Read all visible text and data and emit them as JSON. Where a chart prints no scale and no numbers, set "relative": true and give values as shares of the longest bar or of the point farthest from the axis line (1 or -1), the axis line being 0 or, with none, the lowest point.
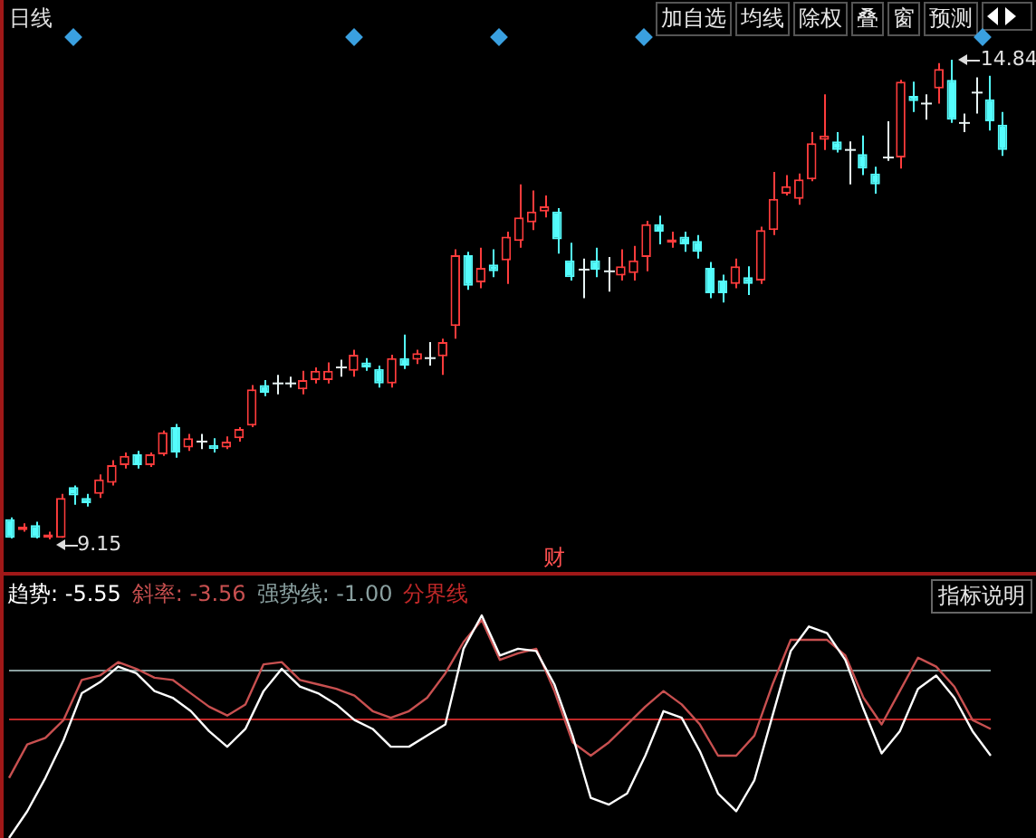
{
  "chart_data": [
    {
      "type": "candlestick",
      "title": "日线",
      "tick_labels": false,
      "categories": [
        null,
        null,
        null,
        null,
        null,
        null,
        null,
        null,
        null,
        null,
        null,
        null,
        null,
        null,
        null,
        null,
        null,
        null,
        null,
        null,
        null,
        null,
        null,
        null,
        null,
        null,
        null,
        null,
        null,
        null,
        null,
        null,
        null,
        null,
        null,
        null,
        null,
        null,
        null,
        null,
        null,
        null,
        null,
        null,
        null,
        null,
        null,
        null,
        null,
        null,
        null,
        null,
        null,
        null,
        null,
        null,
        null,
        null,
        null,
        null,
        null,
        null,
        null,
        null,
        null,
        null,
        null,
        null,
        null,
        null,
        null,
        null,
        null,
        null,
        null,
        null,
        null,
        null,
        null
      ],
      "ohlc": [
        [
          9.39,
          9.41,
          9.16,
          9.17
        ],
        [
          9.26,
          9.34,
          9.24,
          9.3
        ],
        [
          9.32,
          9.36,
          9.16,
          9.17
        ],
        [
          9.17,
          9.24,
          9.15,
          9.21
        ],
        [
          9.17,
          9.69,
          9.17,
          9.64
        ],
        [
          9.77,
          9.79,
          9.56,
          9.67
        ],
        [
          9.64,
          9.69,
          9.54,
          9.58
        ],
        [
          9.69,
          9.92,
          9.64,
          9.86
        ],
        [
          9.82,
          10.09,
          9.79,
          10.03
        ],
        [
          10.03,
          10.18,
          9.99,
          10.14
        ],
        [
          10.16,
          10.2,
          9.99,
          10.03
        ],
        [
          10.03,
          10.18,
          10.01,
          10.16
        ],
        [
          10.16,
          10.44,
          10.14,
          10.42
        ],
        [
          10.48,
          10.52,
          10.12,
          10.18
        ],
        [
          10.24,
          10.4,
          10.2,
          10.35
        ],
        [
          10.31,
          10.4,
          10.22,
          10.31
        ],
        [
          10.27,
          10.35,
          10.18,
          10.22
        ],
        [
          10.24,
          10.37,
          10.22,
          10.31
        ],
        [
          10.35,
          10.48,
          10.31,
          10.46
        ],
        [
          10.5,
          10.98,
          10.48,
          10.93
        ],
        [
          10.98,
          11.04,
          10.85,
          10.89
        ],
        [
          11.0,
          11.1,
          10.87,
          11.0
        ],
        [
          11.0,
          11.08,
          10.95,
          11.0
        ],
        [
          10.93,
          11.15,
          10.87,
          11.04
        ],
        [
          11.04,
          11.19,
          11.0,
          11.15
        ],
        [
          11.04,
          11.25,
          11.0,
          11.15
        ],
        [
          11.19,
          11.28,
          11.08,
          11.19
        ],
        [
          11.15,
          11.4,
          11.08,
          11.34
        ],
        [
          11.25,
          11.3,
          11.15,
          11.19
        ],
        [
          11.17,
          11.21,
          10.95,
          11.0
        ],
        [
          11.0,
          11.34,
          10.95,
          11.3
        ],
        [
          11.3,
          11.58,
          11.17,
          11.21
        ],
        [
          11.28,
          11.4,
          11.23,
          11.36
        ],
        [
          11.3,
          11.49,
          11.21,
          11.3
        ],
        [
          11.32,
          11.53,
          11.1,
          11.49
        ],
        [
          11.68,
          12.59,
          11.53,
          12.52
        ],
        [
          12.52,
          12.56,
          12.11,
          12.16
        ],
        [
          12.2,
          12.61,
          12.13,
          12.37
        ],
        [
          12.41,
          12.59,
          12.26,
          12.33
        ],
        [
          12.46,
          12.8,
          12.18,
          12.74
        ],
        [
          12.69,
          13.36,
          12.61,
          12.97
        ],
        [
          12.91,
          13.29,
          12.82,
          13.04
        ],
        [
          13.04,
          13.23,
          12.97,
          13.1
        ],
        [
          13.04,
          13.08,
          12.54,
          12.71
        ],
        [
          12.46,
          12.67,
          12.22,
          12.26
        ],
        [
          12.35,
          12.48,
          12.01,
          12.35
        ],
        [
          12.46,
          12.61,
          12.26,
          12.35
        ],
        [
          12.33,
          12.5,
          12.09,
          12.33
        ],
        [
          12.28,
          12.59,
          12.22,
          12.39
        ],
        [
          12.31,
          12.63,
          12.22,
          12.46
        ],
        [
          12.5,
          12.93,
          12.33,
          12.89
        ],
        [
          12.89,
          12.99,
          12.65,
          12.8
        ],
        [
          12.67,
          12.8,
          12.61,
          12.71
        ],
        [
          12.74,
          12.8,
          12.56,
          12.65
        ],
        [
          12.69,
          12.76,
          12.48,
          12.56
        ],
        [
          12.37,
          12.44,
          12.01,
          12.07
        ],
        [
          12.22,
          12.29,
          11.96,
          12.07
        ],
        [
          12.18,
          12.48,
          12.13,
          12.39
        ],
        [
          12.26,
          12.39,
          12.05,
          12.18
        ],
        [
          12.22,
          12.86,
          12.18,
          12.82
        ],
        [
          12.82,
          13.51,
          12.76,
          13.19
        ],
        [
          13.25,
          13.47,
          13.23,
          13.34
        ],
        [
          13.19,
          13.49,
          13.12,
          13.42
        ],
        [
          13.42,
          13.98,
          13.4,
          13.85
        ],
        [
          13.89,
          14.43,
          13.77,
          13.94
        ],
        [
          13.87,
          13.98,
          13.74,
          13.77
        ],
        [
          13.77,
          13.87,
          13.36,
          13.77
        ],
        [
          13.72,
          13.94,
          13.47,
          13.55
        ],
        [
          13.49,
          13.57,
          13.25,
          13.36
        ],
        [
          13.68,
          14.11,
          13.64,
          13.68
        ],
        [
          13.68,
          14.6,
          13.55,
          14.58
        ],
        [
          14.41,
          14.58,
          14.22,
          14.35
        ],
        [
          14.32,
          14.43,
          14.13,
          14.32
        ],
        [
          14.5,
          14.8,
          14.32,
          14.73
        ],
        [
          14.6,
          14.84,
          14.09,
          14.13
        ],
        [
          14.09,
          14.2,
          13.98,
          14.09
        ],
        [
          14.45,
          14.63,
          14.2,
          14.45
        ],
        [
          14.37,
          14.65,
          14.0,
          14.11
        ],
        [
          14.07,
          14.22,
          13.7,
          13.77
        ]
      ],
      "colors": [
        "#54fcfc",
        "#ff3c3c",
        "#54fcfc",
        "#ff3c3c",
        "#ff3c3c",
        "#54fcfc",
        "#54fcfc",
        "#ff3c3c",
        "#ff3c3c",
        "#ff3c3c",
        "#54fcfc",
        "#ff3c3c",
        "#ff3c3c",
        "#54fcfc",
        "#ff3c3c",
        "#e8f4f4",
        "#54fcfc",
        "#ff3c3c",
        "#ff3c3c",
        "#ff3c3c",
        "#54fcfc",
        "#e8f4f4",
        "#e8f4f4",
        "#ff3c3c",
        "#ff3c3c",
        "#ff3c3c",
        "#e8f4f4",
        "#ff3c3c",
        "#54fcfc",
        "#54fcfc",
        "#ff3c3c",
        "#54fcfc",
        "#ff3c3c",
        "#e8f4f4",
        "#ff3c3c",
        "#ff3c3c",
        "#54fcfc",
        "#ff3c3c",
        "#54fcfc",
        "#ff3c3c",
        "#ff3c3c",
        "#ff3c3c",
        "#ff3c3c",
        "#54fcfc",
        "#54fcfc",
        "#e8f4f4",
        "#54fcfc",
        "#e8f4f4",
        "#ff3c3c",
        "#ff3c3c",
        "#ff3c3c",
        "#54fcfc",
        "#ff3c3c",
        "#54fcfc",
        "#54fcfc",
        "#54fcfc",
        "#54fcfc",
        "#ff3c3c",
        "#54fcfc",
        "#ff3c3c",
        "#ff3c3c",
        "#ff3c3c",
        "#ff3c3c",
        "#ff3c3c",
        "#ff3c3c",
        "#54fcfc",
        "#e8f4f4",
        "#54fcfc",
        "#54fcfc",
        "#e8f4f4",
        "#ff3c3c",
        "#54fcfc",
        "#e8f4f4",
        "#ff3c3c",
        "#54fcfc",
        "#e8f4f4",
        "#e8f4f4",
        "#54fcfc",
        "#54fcfc"
      ],
      "annotations": [
        "加自选",
        "均线",
        "除权",
        "叠",
        "窗",
        "预测",
        "财",
        "14.84",
        "9.15"
      ]
    },
    {
      "type": "line",
      "relative": true,
      "marker": "none",
      "categories": [
        null,
        null,
        null,
        null,
        null,
        null,
        null,
        null,
        null,
        null,
        null,
        null,
        null,
        null,
        null,
        null,
        null,
        null,
        null,
        null,
        null,
        null,
        null,
        null,
        null,
        null,
        null,
        null,
        null,
        null,
        null,
        null,
        null,
        null,
        null,
        null,
        null,
        null,
        null,
        null,
        null,
        null,
        null,
        null,
        null,
        null,
        null,
        null,
        null,
        null,
        null,
        null,
        null,
        null,
        null
      ],
      "series": [
        {
          "color": "#ffffff",
          "values": [
            0,
            0.12,
            0.27,
            0.44,
            0.65,
            0.7,
            0.77,
            0.74,
            0.66,
            0.63,
            0.57,
            0.48,
            0.41,
            0.49,
            0.66,
            0.76,
            0.68,
            0.65,
            0.6,
            0.53,
            0.49,
            0.41,
            0.41,
            0.46,
            0.51,
            0.85,
            1,
            0.82,
            0.85,
            0.84,
            0.69,
            0.46,
            0.18,
            0.15,
            0.2,
            0.37,
            0.57,
            0.54,
            0.39,
            0.2,
            0.12,
            0.26,
            0.55,
            0.84,
            0.95,
            0.92,
            0.8,
            0.58,
            0.38,
            0.48,
            0.67,
            0.73,
            0.63,
            0.48,
            0.37
          ]
        },
        {
          "color": "#c85050",
          "values": [
            0.27,
            0.42,
            0.45,
            0.53,
            0.71,
            0.73,
            0.79,
            0.76,
            0.72,
            0.71,
            0.65,
            0.59,
            0.55,
            0.6,
            0.78,
            0.79,
            0.71,
            0.69,
            0.67,
            0.64,
            0.57,
            0.54,
            0.57,
            0.63,
            0.74,
            0.88,
            0.98,
            0.8,
            0.83,
            0.85,
            0.66,
            0.43,
            0.37,
            0.43,
            0.51,
            0.59,
            0.66,
            0.6,
            0.51,
            0.37,
            0.37,
            0.46,
            0.69,
            0.89,
            0.89,
            0.89,
            0.82,
            0.63,
            0.51,
            0.66,
            0.81,
            0.77,
            0.68,
            0.53,
            0.49
          ]
        }
      ],
      "ref_lines": [
        {
          "axis": "y",
          "value": 0.76,
          "color": "#8aa0a0"
        },
        {
          "axis": "y",
          "value": 0.54,
          "color": "#c02828"
        }
      ],
      "annotations": [
        "趋势: -5.55",
        "斜率: -3.56",
        "强势线: -1.00",
        "分界线",
        "指标说明"
      ]
    }
  ]
}
